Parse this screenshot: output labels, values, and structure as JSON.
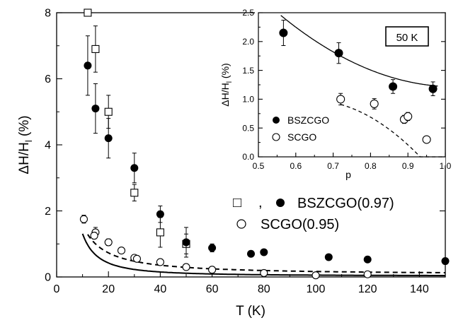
{
  "chart_data": [
    {
      "type": "scatter",
      "xlabel": "T (K)",
      "ylabel_main": "ΔH/H",
      "ylabel_sub": "l",
      "ylabel_unit": " (%)",
      "xlim": [
        0,
        150
      ],
      "ylim": [
        0,
        8
      ],
      "xticks": [
        0,
        20,
        40,
        60,
        80,
        100,
        120,
        140
      ],
      "yticks": [
        0,
        2,
        4,
        6,
        8
      ],
      "legend": {
        "open_square_marker": "□",
        "comma": ",",
        "bszcgo_label": "BSZCGO(0.97)",
        "scgo_label": "SCGO(0.95)",
        "placement": "lower-right"
      },
      "series": [
        {
          "marker": "open-square",
          "points": [
            {
              "x": 15,
              "y": 6.9,
              "err": 0.7
            },
            {
              "x": 20,
              "y": 5.0,
              "err": 0.5
            },
            {
              "x": 30,
              "y": 2.55,
              "err": 0.25
            },
            {
              "x": 40,
              "y": 1.35,
              "err": 0.45
            },
            {
              "x": 50,
              "y": 1.0,
              "err": 0.3
            },
            {
              "x": 12,
              "y": 8.0,
              "err": 0
            }
          ]
        },
        {
          "marker": "filled-circle",
          "points": [
            {
              "x": 12,
              "y": 6.4,
              "err": 0.9
            },
            {
              "x": 15,
              "y": 5.1,
              "err": 0.75
            },
            {
              "x": 20,
              "y": 4.2,
              "err": 0.6
            },
            {
              "x": 30,
              "y": 3.3,
              "err": 0.45
            },
            {
              "x": 40,
              "y": 1.9,
              "err": 0.25
            },
            {
              "x": 50,
              "y": 1.05,
              "err": 0.45
            },
            {
              "x": 60,
              "y": 0.88,
              "err": 0.12
            },
            {
              "x": 75,
              "y": 0.7,
              "err": 0.08
            },
            {
              "x": 80,
              "y": 0.75,
              "err": 0.08
            },
            {
              "x": 105,
              "y": 0.6,
              "err": 0.06
            },
            {
              "x": 120,
              "y": 0.53,
              "err": 0.05
            },
            {
              "x": 150,
              "y": 0.48,
              "err": 0.05
            }
          ]
        },
        {
          "marker": "open-circle",
          "points": [
            {
              "x": 10.5,
              "y": 1.75,
              "err": 0.12
            },
            {
              "x": 15,
              "y": 1.35,
              "err": 0.15
            },
            {
              "x": 14.5,
              "y": 1.25,
              "err": 0.1
            },
            {
              "x": 20,
              "y": 1.05,
              "err": 0.1
            },
            {
              "x": 25,
              "y": 0.8,
              "err": 0.05
            },
            {
              "x": 30,
              "y": 0.58,
              "err": 0.06
            },
            {
              "x": 31,
              "y": 0.55,
              "err": 0.05
            },
            {
              "x": 40,
              "y": 0.45,
              "err": 0.05
            },
            {
              "x": 50,
              "y": 0.3,
              "err": 0.05
            },
            {
              "x": 60,
              "y": 0.22,
              "err": 0.05
            },
            {
              "x": 80,
              "y": 0.12,
              "err": 0.05
            },
            {
              "x": 100,
              "y": 0.05,
              "err": 0.05
            },
            {
              "x": 120,
              "y": 0.08,
              "err": 0.05
            }
          ]
        }
      ],
      "fits": [
        {
          "style": "solid",
          "curve": "power-law",
          "A": 64,
          "n": 1.7,
          "offset": 0.03,
          "from": 10,
          "to": 150
        },
        {
          "style": "dashed",
          "curve": "power-law",
          "A": 24,
          "n": 1.2,
          "offset": 0.07,
          "from": 12,
          "to": 150
        }
      ]
    },
    {
      "type": "scatter",
      "xlabel": "p",
      "ylabel_main": "ΔH/H",
      "ylabel_sub": "l",
      "ylabel_unit": " (%)",
      "xlim": [
        0.5,
        1.0
      ],
      "ylim": [
        0,
        2.5
      ],
      "xticks": [
        "0.5",
        "0.6",
        "0.7",
        "0.8",
        "0.9",
        "1.0"
      ],
      "yticks": [
        "0.0",
        "0.5",
        "1.0",
        "1.5",
        "2.0",
        "2.5"
      ],
      "annotation": "50 K",
      "legend": {
        "filled_label": "BSZCGO",
        "open_label": "SCGO",
        "placement": "lower-left"
      },
      "series": [
        {
          "marker": "filled-circle",
          "points": [
            {
              "x": 0.567,
              "y": 2.15,
              "err": 0.22
            },
            {
              "x": 0.715,
              "y": 1.8,
              "err": 0.18
            },
            {
              "x": 0.86,
              "y": 1.22,
              "err": 0.12
            },
            {
              "x": 0.967,
              "y": 1.18,
              "err": 0.12
            }
          ]
        },
        {
          "marker": "open-circle",
          "points": [
            {
              "x": 0.72,
              "y": 1.0,
              "err": 0.1
            },
            {
              "x": 0.81,
              "y": 0.92,
              "err": 0.09
            },
            {
              "x": 0.89,
              "y": 0.65,
              "err": 0.07
            },
            {
              "x": 0.9,
              "y": 0.7,
              "err": 0.07
            },
            {
              "x": 0.95,
              "y": 0.3,
              "err": 0.05
            }
          ]
        }
      ],
      "fits": [
        {
          "style": "solid",
          "curve": "poly",
          "coeffs": [
            7.22,
            -11.71,
            5.71
          ],
          "from": 0.56,
          "to": 0.98
        },
        {
          "style": "dashed",
          "curve": "poly",
          "coeffs": [
            -3.63,
            14.47,
            -11.34
          ],
          "from": 0.72,
          "to": 1.0
        }
      ]
    }
  ]
}
